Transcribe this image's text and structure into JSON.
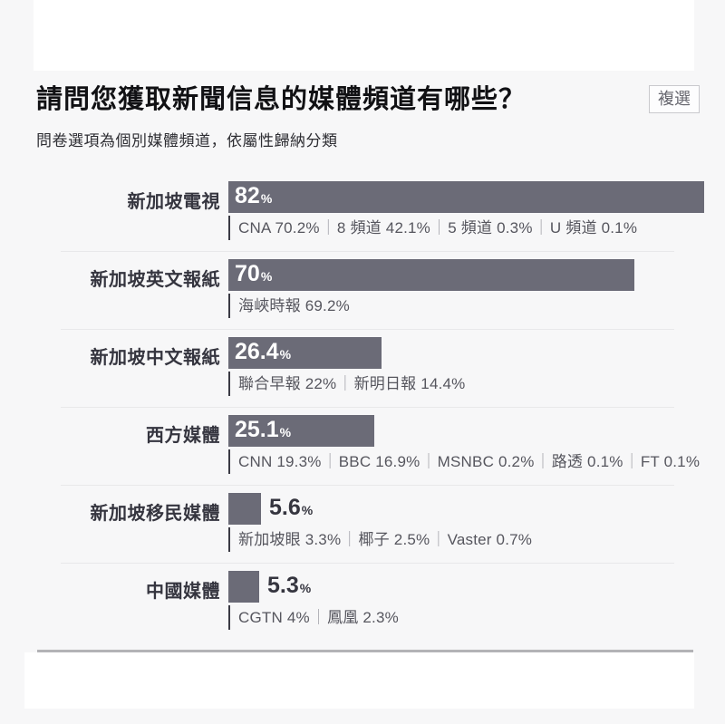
{
  "colors": {
    "bar": "#6b6b77",
    "page_background": "#f7f7f8",
    "card_background": "#ffffff",
    "label_text": "#35353f",
    "detail_text": "#56565e",
    "divider": "#e8e8ea",
    "bottom_rule": "#b3b3b6"
  },
  "header": {
    "title": "請問您獲取新聞信息的媒體頻道有哪些？",
    "badge": "複選",
    "subtitle": "問卷選項為個別媒體頻道，依屬性歸納分類"
  },
  "chart_data": {
    "type": "bar",
    "orientation": "horizontal",
    "title": "請問您獲取新聞信息的媒體頻道有哪些？",
    "note": "複選",
    "subtitle": "問卷選項為個別媒體頻道，依屬性歸納分類",
    "unit": "%",
    "xlim": [
      0,
      86.5
    ],
    "grid": false,
    "legend": false,
    "bar_color": "#6b6b77",
    "categories": [
      "新加坡電視",
      "新加坡英文報紙",
      "新加坡中文報紙",
      "西方媒體",
      "新加坡移民媒體",
      "中國媒體"
    ],
    "values": [
      82,
      70,
      26.4,
      25.1,
      5.6,
      5.3
    ],
    "rows": [
      {
        "label": "新加坡電視",
        "value": 82,
        "display": "82",
        "sub_items": [
          {
            "name": "CNA",
            "value": "70.2%"
          },
          {
            "name": "8 頻道",
            "value": "42.1%"
          },
          {
            "name": "5 頻道",
            "value": "0.3%"
          },
          {
            "name": "U 頻道",
            "value": "0.1%"
          }
        ]
      },
      {
        "label": "新加坡英文報紙",
        "value": 70,
        "display": "70",
        "sub_items": [
          {
            "name": "海峽時報",
            "value": "69.2%"
          }
        ]
      },
      {
        "label": "新加坡中文報紙",
        "value": 26.4,
        "display": "26.4",
        "sub_items": [
          {
            "name": "聯合早報",
            "value": "22%"
          },
          {
            "name": "新明日報",
            "value": "14.4%"
          }
        ]
      },
      {
        "label": "西方媒體",
        "value": 25.1,
        "display": "25.1",
        "sub_items": [
          {
            "name": "CNN",
            "value": "19.3%"
          },
          {
            "name": "BBC",
            "value": "16.9%"
          },
          {
            "name": "MSNBC",
            "value": "0.2%"
          },
          {
            "name": "路透",
            "value": "0.1%"
          },
          {
            "name": "FT",
            "value": "0.1%"
          }
        ]
      },
      {
        "label": "新加坡移民媒體",
        "value": 5.6,
        "display": "5.6",
        "sub_items": [
          {
            "name": "新加坡眼",
            "value": "3.3%"
          },
          {
            "name": "椰子",
            "value": "2.5%"
          },
          {
            "name": "Vaster",
            "value": "0.7%"
          }
        ]
      },
      {
        "label": "中國媒體",
        "value": 5.3,
        "display": "5.3",
        "sub_items": [
          {
            "name": "CGTN",
            "value": "4%"
          },
          {
            "name": "鳳凰",
            "value": "2.3%"
          }
        ]
      }
    ]
  }
}
